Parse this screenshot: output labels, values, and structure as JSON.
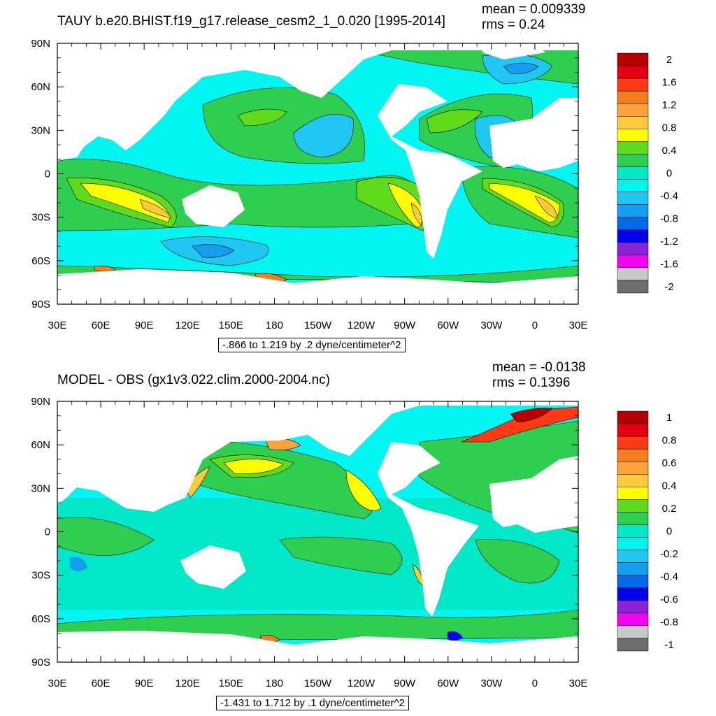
{
  "chart_data": [
    {
      "type": "heatmap",
      "title": "TAUY b.e20.BHIST.f19_g17.release_cesm2_1_0.020 [1995-2014]",
      "stats": {
        "mean": "mean = 0.009339",
        "rms": "rms = 0.24"
      },
      "range_label": "-.866 to 1.219 by .2 dyne/centimeter^2",
      "x_ticks": [
        "30E",
        "60E",
        "90E",
        "120E",
        "150E",
        "180",
        "150W",
        "120W",
        "90W",
        "60W",
        "30W",
        "0",
        "30E"
      ],
      "y_ticks": [
        "90N",
        "60N",
        "30N",
        "0",
        "30S",
        "60S",
        "90S"
      ],
      "colorbar": {
        "labels": [
          "2",
          "1.6",
          "1.2",
          "0.8",
          "0.4",
          "0",
          "-0.4",
          "-0.8",
          "-1.2",
          "-1.6",
          "-2"
        ],
        "colors": [
          "#b50000",
          "#e30014",
          "#ff3a15",
          "#f27f1b",
          "#fba23a",
          "#fec93b",
          "#ffff00",
          "#5fdb1c",
          "#2ecf51",
          "#00e8c8",
          "#03f5f2",
          "#1fc7f2",
          "#129fef",
          "#0269e9",
          "#0000ee",
          "#8a22d5",
          "#f203f0",
          "#c8c8c8",
          "#6d6d6d"
        ]
      },
      "xlim": [
        30,
        390
      ],
      "ylim": [
        -90,
        90
      ]
    },
    {
      "type": "heatmap",
      "title": "MODEL - OBS (gx1v3.022.clim.2000-2004.nc)",
      "stats": {
        "mean": "mean = -0.0138",
        "rms": "rms = 0.1396"
      },
      "range_label": "-1.431 to 1.712 by .1 dyne/centimeter^2",
      "x_ticks": [
        "30E",
        "60E",
        "90E",
        "120E",
        "150E",
        "180",
        "150W",
        "120W",
        "90W",
        "60W",
        "30W",
        "0",
        "30E"
      ],
      "y_ticks": [
        "90N",
        "60N",
        "30N",
        "0",
        "30S",
        "60S",
        "90S"
      ],
      "colorbar": {
        "labels": [
          "1",
          "0.8",
          "0.6",
          "0.4",
          "0.2",
          "0",
          "-0.2",
          "-0.4",
          "-0.6",
          "-0.8",
          "-1"
        ],
        "colors": [
          "#b50000",
          "#e30014",
          "#ff3a15",
          "#f27f1b",
          "#fba23a",
          "#fec93b",
          "#ffff00",
          "#5fdb1c",
          "#2ecf51",
          "#00e8c8",
          "#03f5f2",
          "#1fc7f2",
          "#129fef",
          "#0269e9",
          "#0000ee",
          "#8a22d5",
          "#f203f0",
          "#c8c8c8",
          "#6d6d6d"
        ]
      },
      "xlim": [
        30,
        390
      ],
      "ylim": [
        -90,
        90
      ]
    }
  ]
}
